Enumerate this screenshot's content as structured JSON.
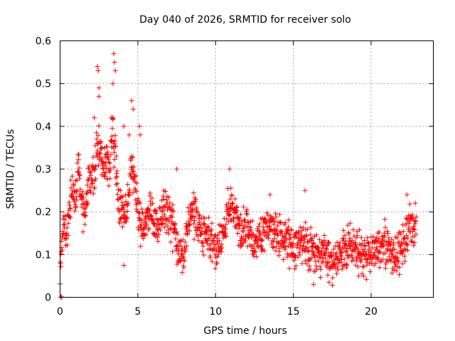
{
  "chart_data": {
    "type": "scatter",
    "title": "Day 040 of 2026, SRMTID for receiver solo",
    "xlabel": "GPS time / hours",
    "ylabel": "SRMTID / TECUs",
    "xlim": [
      0,
      24
    ],
    "ylim": [
      0,
      0.6
    ],
    "xticks": [
      0,
      5,
      10,
      15,
      20
    ],
    "yticks": [
      0,
      0.1,
      0.2,
      0.3,
      0.4,
      0.5,
      0.6
    ],
    "xtick_labels": [
      "0",
      "5",
      "10",
      "15",
      "20"
    ],
    "ytick_labels": [
      "0",
      "0.1",
      "0.2",
      "0.3",
      "0.4",
      "0.5",
      "0.6"
    ],
    "grid": true,
    "marker": "+",
    "marker_color": "#ff0000",
    "series": [
      {
        "name": "solo",
        "anchors": [
          [
            0.0,
            0.08
          ],
          [
            0.2,
            0.17
          ],
          [
            0.4,
            0.15
          ],
          [
            0.6,
            0.2
          ],
          [
            0.8,
            0.27
          ],
          [
            1.0,
            0.24
          ],
          [
            1.2,
            0.31
          ],
          [
            1.4,
            0.22
          ],
          [
            1.6,
            0.2
          ],
          [
            1.8,
            0.26
          ],
          [
            2.0,
            0.28
          ],
          [
            2.2,
            0.3
          ],
          [
            2.4,
            0.36
          ],
          [
            2.6,
            0.32
          ],
          [
            2.8,
            0.3
          ],
          [
            3.0,
            0.33
          ],
          [
            3.2,
            0.3
          ],
          [
            3.4,
            0.38
          ],
          [
            3.6,
            0.31
          ],
          [
            3.8,
            0.22
          ],
          [
            4.0,
            0.2
          ],
          [
            4.2,
            0.19
          ],
          [
            4.4,
            0.24
          ],
          [
            4.6,
            0.3
          ],
          [
            4.8,
            0.27
          ],
          [
            5.0,
            0.2
          ],
          [
            5.2,
            0.17
          ],
          [
            5.5,
            0.17
          ],
          [
            5.8,
            0.21
          ],
          [
            6.0,
            0.19
          ],
          [
            6.3,
            0.16
          ],
          [
            6.6,
            0.2
          ],
          [
            7.0,
            0.18
          ],
          [
            7.4,
            0.15
          ],
          [
            7.7,
            0.11
          ],
          [
            8.0,
            0.1
          ],
          [
            8.3,
            0.19
          ],
          [
            8.6,
            0.2
          ],
          [
            9.0,
            0.16
          ],
          [
            9.4,
            0.14
          ],
          [
            9.8,
            0.13
          ],
          [
            10.2,
            0.12
          ],
          [
            10.6,
            0.16
          ],
          [
            10.9,
            0.22
          ],
          [
            11.2,
            0.2
          ],
          [
            11.6,
            0.15
          ],
          [
            12.0,
            0.17
          ],
          [
            12.5,
            0.12
          ],
          [
            13.0,
            0.15
          ],
          [
            13.5,
            0.17
          ],
          [
            14.0,
            0.15
          ],
          [
            14.5,
            0.14
          ],
          [
            15.0,
            0.12
          ],
          [
            15.5,
            0.13
          ],
          [
            16.0,
            0.11
          ],
          [
            16.5,
            0.1
          ],
          [
            17.0,
            0.11
          ],
          [
            17.5,
            0.08
          ],
          [
            18.0,
            0.1
          ],
          [
            18.5,
            0.12
          ],
          [
            19.0,
            0.11
          ],
          [
            19.5,
            0.1
          ],
          [
            20.0,
            0.1
          ],
          [
            20.5,
            0.12
          ],
          [
            21.0,
            0.12
          ],
          [
            21.5,
            0.1
          ],
          [
            22.0,
            0.11
          ],
          [
            22.3,
            0.15
          ],
          [
            22.5,
            0.18
          ],
          [
            22.9,
            0.15
          ]
        ],
        "spread": 0.045,
        "count": 1500,
        "outliers": [
          [
            0.05,
            0.0
          ],
          [
            0.1,
            0.001
          ],
          [
            2.4,
            0.54
          ],
          [
            2.45,
            0.53
          ],
          [
            3.45,
            0.57
          ],
          [
            3.5,
            0.55
          ],
          [
            3.55,
            0.53
          ],
          [
            3.4,
            0.5
          ],
          [
            2.5,
            0.49
          ],
          [
            2.5,
            0.47
          ],
          [
            4.6,
            0.46
          ],
          [
            4.7,
            0.44
          ],
          [
            5.1,
            0.4
          ],
          [
            5.15,
            0.38
          ],
          [
            4.1,
            0.4
          ],
          [
            4.45,
            0.38
          ],
          [
            7.5,
            0.3
          ],
          [
            10.9,
            0.3
          ],
          [
            15.75,
            0.25
          ],
          [
            22.3,
            0.24
          ],
          [
            4.1,
            0.075
          ],
          [
            16.3,
            0.03
          ],
          [
            17.3,
            0.035
          ],
          [
            2.2,
            0.42
          ],
          [
            3.3,
            0.42
          ],
          [
            13.5,
            0.24
          ]
        ]
      }
    ]
  }
}
